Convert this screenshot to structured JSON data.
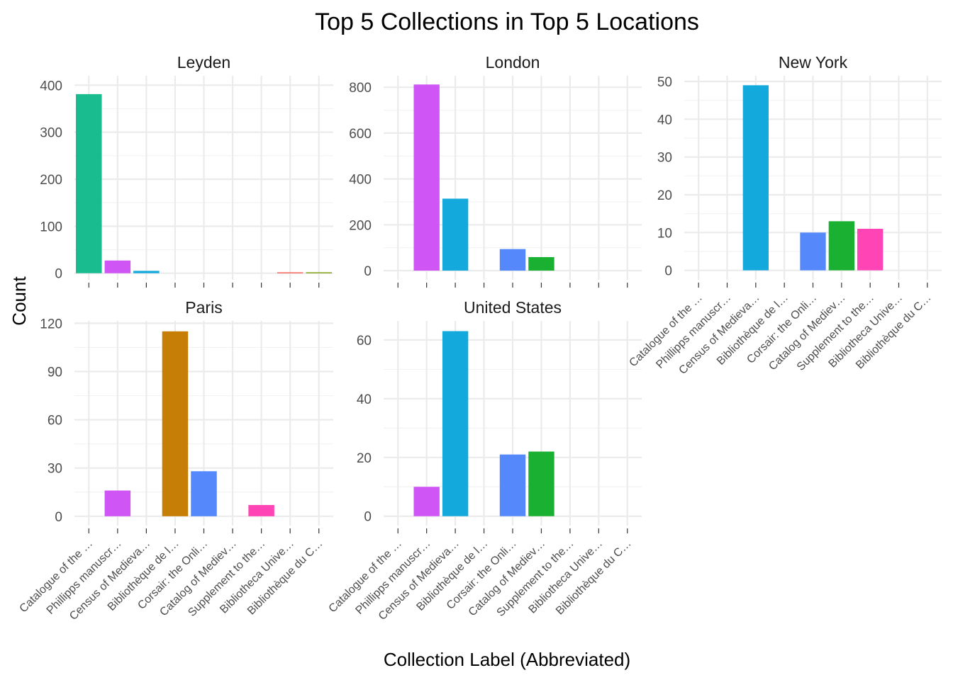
{
  "chart_data": {
    "type": "bar",
    "title": "Top 5 Collections in Top 5 Locations",
    "xlabel": "Collection Label (Abbreviated)",
    "ylabel": "Count",
    "grid": true,
    "legend": "none",
    "categories": [
      "Catalogue of the …",
      "Phillipps manuscr…",
      "Census of Medieva…",
      "Bibliothèque de l…",
      "Corsair: the Onli…",
      "Catalog of Mediev…",
      "Supplement to the…",
      "Bibliotheca Unive…",
      "Bibliothèque du C…"
    ],
    "category_colors": [
      "#19BC8F",
      "#D055F5",
      "#14A9DC",
      "#C67E07",
      "#5488FB",
      "#1AB031",
      "#FF44B6",
      "#F8665B",
      "#7FA113"
    ],
    "panels": [
      {
        "name": "Leyden",
        "yticks": [
          0,
          100,
          200,
          300,
          400
        ],
        "ylim": [
          -14,
          420
        ],
        "values": [
          381,
          27,
          5,
          null,
          null,
          null,
          null,
          2,
          2
        ]
      },
      {
        "name": "London",
        "yticks": [
          0,
          200,
          400,
          600,
          800
        ],
        "ylim": [
          -40,
          850
        ],
        "values": [
          null,
          812,
          314,
          null,
          94,
          59,
          null,
          null,
          null
        ]
      },
      {
        "name": "New York",
        "yticks": [
          0,
          10,
          20,
          30,
          40,
          50
        ],
        "ylim": [
          -2.5,
          51.5
        ],
        "values": [
          null,
          null,
          49,
          null,
          10,
          13,
          11,
          null,
          null
        ]
      },
      {
        "name": "Paris",
        "yticks": [
          0,
          30,
          60,
          90,
          120
        ],
        "ylim": [
          -5.8,
          121.5
        ],
        "values": [
          null,
          16,
          null,
          115,
          28,
          null,
          7,
          null,
          null
        ]
      },
      {
        "name": "United States",
        "yticks": [
          0,
          20,
          40,
          60
        ],
        "ylim": [
          -3.2,
          66.5
        ],
        "values": [
          null,
          10,
          63,
          null,
          21,
          22,
          null,
          null,
          null
        ]
      }
    ]
  }
}
